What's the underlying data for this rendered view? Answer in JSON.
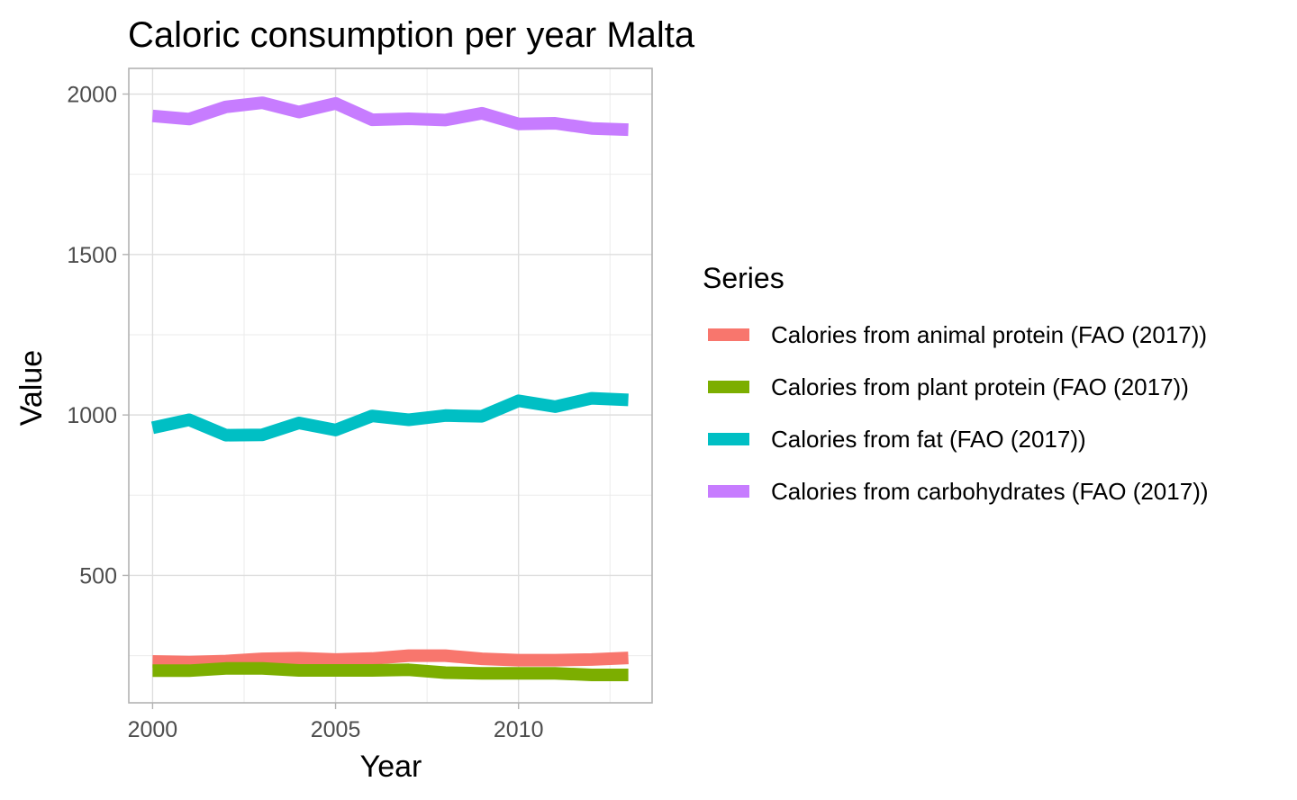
{
  "chart_data": {
    "type": "line",
    "title": "Caloric consumption per year Malta",
    "xlabel": "Year",
    "ylabel": "Value",
    "xlim": [
      1999.35,
      2013.65
    ],
    "ylim": [
      103,
      2080
    ],
    "xticks": [
      2000,
      2005,
      2010
    ],
    "yticks": [
      500,
      1000,
      1500,
      2000
    ],
    "x_minor_ticks": [
      2002.5,
      2007.5,
      2012.5
    ],
    "y_minor_ticks": [
      250,
      750,
      1250,
      1750
    ],
    "grid": true,
    "legend_title": "Series",
    "legend_position": "right",
    "x": [
      2000,
      2001,
      2002,
      2003,
      2004,
      2005,
      2006,
      2007,
      2008,
      2009,
      2010,
      2011,
      2012,
      2013
    ],
    "series": [
      {
        "name": "Calories from animal protein (FAO (2017))",
        "color": "#f8766d",
        "values": [
          232,
          230,
          233,
          240,
          242,
          238,
          241,
          250,
          250,
          240,
          236,
          236,
          238,
          243
        ]
      },
      {
        "name": "Calories from plant protein (FAO (2017))",
        "color": "#7cae00",
        "values": [
          203,
          203,
          210,
          210,
          204,
          204,
          204,
          206,
          197,
          195,
          195,
          195,
          190,
          190
        ]
      },
      {
        "name": "Calories from fat (FAO (2017))",
        "color": "#00bfc4",
        "values": [
          960,
          985,
          937,
          938,
          975,
          953,
          997,
          985,
          998,
          996,
          1044,
          1026,
          1052,
          1047
        ]
      },
      {
        "name": "Calories from carbohydrates (FAO (2017))",
        "color": "#c77cff",
        "values": [
          1932,
          1922,
          1960,
          1973,
          1944,
          1971,
          1920,
          1923,
          1919,
          1940,
          1907,
          1909,
          1893,
          1889
        ]
      }
    ]
  }
}
